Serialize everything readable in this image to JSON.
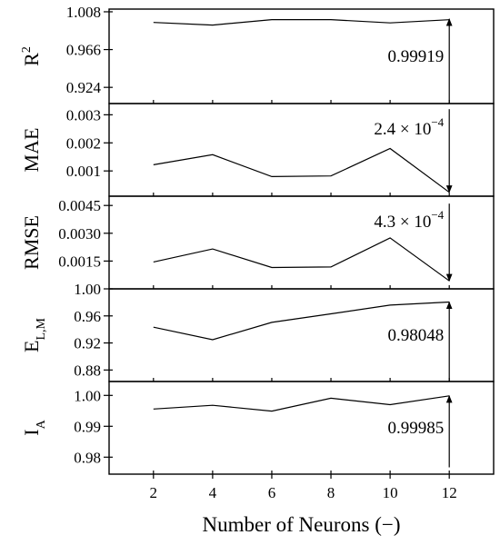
{
  "chart_data": {
    "type": "line",
    "x": [
      2,
      4,
      6,
      8,
      10,
      12
    ],
    "xticks": [
      "2",
      "4",
      "6",
      "8",
      "10",
      "12"
    ],
    "xlim": [
      0.5,
      13.5
    ],
    "xlabel": "Number of Neurons (−)",
    "panels": [
      {
        "id": "r2",
        "ylabel": "R",
        "ylabel_sup": "2",
        "ylabel_sub": "",
        "ylim": [
          0.906,
          1.011
        ],
        "yticks": [
          0.924,
          0.966,
          1.008
        ],
        "ytick_labels": [
          "0.924",
          "0.966",
          "1.008"
        ],
        "values": [
          0.9962,
          0.9932,
          0.9993,
          0.9993,
          0.9957,
          0.99919
        ],
        "annotation": {
          "text": "0.99919",
          "base": "",
          "exponent": "",
          "direction": "up",
          "arrow_from": 0.906,
          "arrow_to": 1.0
        }
      },
      {
        "id": "mae",
        "ylabel": "MAE",
        "ylabel_sup": "",
        "ylabel_sub": "",
        "ylim": [
          0.0001,
          0.0034
        ],
        "yticks": [
          0.001,
          0.002,
          0.003
        ],
        "ytick_labels": [
          "0.001",
          "0.002",
          "0.003"
        ],
        "values": [
          0.00122,
          0.00158,
          0.0008,
          0.00082,
          0.0018,
          0.00024
        ],
        "annotation": {
          "text": "",
          "base": "2.4 × 10",
          "exponent": "−4",
          "direction": "down",
          "arrow_from": 0.0032,
          "arrow_to": 0.00024
        }
      },
      {
        "id": "rmse",
        "ylabel": "RMSE",
        "ylabel_sup": "",
        "ylabel_sub": "",
        "ylim": [
          0.0,
          0.005
        ],
        "yticks": [
          0.0015,
          0.003,
          0.0045
        ],
        "ytick_labels": [
          "0.0015",
          "0.0030",
          "0.0045"
        ],
        "values": [
          0.00145,
          0.00215,
          0.00115,
          0.00118,
          0.00275,
          0.00043
        ],
        "annotation": {
          "text": "",
          "base": "4.3 × 10",
          "exponent": "−4",
          "direction": "down",
          "arrow_from": 0.0046,
          "arrow_to": 0.00043
        }
      },
      {
        "id": "elm",
        "ylabel": "E",
        "ylabel_sup": "",
        "ylabel_sub": "L,M",
        "ylim": [
          0.863,
          1.0
        ],
        "yticks": [
          0.88,
          0.92,
          0.96,
          1.0
        ],
        "ytick_labels": [
          "0.88",
          "0.92",
          "0.96",
          "1.00"
        ],
        "values": [
          0.9433,
          0.9248,
          0.9505,
          0.963,
          0.976,
          0.98048
        ],
        "annotation": {
          "text": "0.98048",
          "base": "",
          "exponent": "",
          "direction": "up",
          "arrow_from": 0.863,
          "arrow_to": 0.98048
        }
      },
      {
        "id": "ia",
        "ylabel": "I",
        "ylabel_sup": "",
        "ylabel_sub": "A",
        "ylim": [
          0.9745,
          1.0045
        ],
        "yticks": [
          0.98,
          0.99,
          1.0
        ],
        "ytick_labels": [
          "0.98",
          "0.99",
          "1.00"
        ],
        "values": [
          0.9956,
          0.9968,
          0.9949,
          0.9991,
          0.997,
          0.99985
        ],
        "annotation": {
          "text": "0.99985",
          "base": "",
          "exponent": "",
          "direction": "up",
          "arrow_from": 0.9767,
          "arrow_to": 0.99985
        }
      }
    ]
  }
}
